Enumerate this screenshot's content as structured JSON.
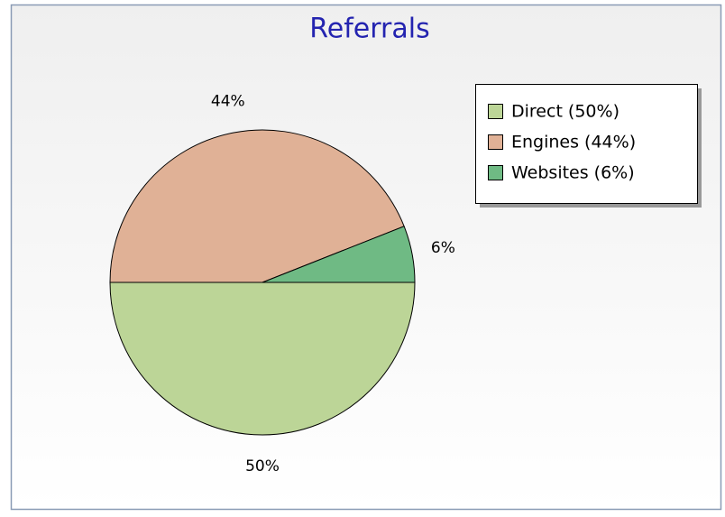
{
  "chart_data": {
    "type": "pie",
    "title": "Referrals",
    "categories": [
      "Direct",
      "Engines",
      "Websites"
    ],
    "values": [
      50,
      44,
      6
    ],
    "value_labels": [
      "50%",
      "44%",
      "6%"
    ],
    "legend_labels": [
      "Direct (50%)",
      "Engines (44%)",
      "Websites (6%)"
    ],
    "colors": [
      "#bcd597",
      "#e0b196",
      "#6fba84"
    ],
    "legend": "upper right"
  }
}
